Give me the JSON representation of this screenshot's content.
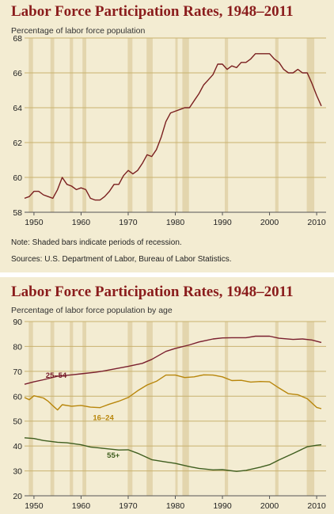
{
  "colors": {
    "background": "#f3ecd2",
    "title": "#8a1c1c",
    "recession": "#e3d5ad",
    "grid": "#c8b26f",
    "line_total": "#7a1f1f",
    "line_25_54": "#7a1f2e",
    "line_16_24": "#b8860b",
    "line_55plus": "#3f5e1f"
  },
  "chart_data": [
    {
      "type": "line",
      "title": "Labor Force Participation Rates, 1948–2011",
      "subtitle": "Percentage of labor force population",
      "xlim": [
        1948,
        2012
      ],
      "ylim": [
        58,
        68
      ],
      "x_ticks": [
        1950,
        1960,
        1970,
        1980,
        1990,
        2000,
        2010
      ],
      "y_ticks": [
        58,
        60,
        62,
        64,
        66,
        68
      ],
      "grid": true,
      "recessions": [
        [
          1948.9,
          1949.8
        ],
        [
          1953.5,
          1954.3
        ],
        [
          1957.6,
          1958.3
        ],
        [
          1960.3,
          1961.1
        ],
        [
          1969.9,
          1970.9
        ],
        [
          1973.9,
          1975.2
        ],
        [
          1980.0,
          1980.5
        ],
        [
          1981.5,
          1982.9
        ],
        [
          1990.5,
          1991.2
        ],
        [
          2001.2,
          2001.9
        ],
        [
          2007.9,
          2009.5
        ]
      ],
      "series": [
        {
          "color": "#7a1f1f",
          "points": [
            [
              1948,
              58.8
            ],
            [
              1949,
              58.9
            ],
            [
              1950,
              59.2
            ],
            [
              1951,
              59.2
            ],
            [
              1952,
              59.0
            ],
            [
              1953,
              58.9
            ],
            [
              1954,
              58.8
            ],
            [
              1955,
              59.3
            ],
            [
              1956,
              60.0
            ],
            [
              1957,
              59.6
            ],
            [
              1958,
              59.5
            ],
            [
              1959,
              59.3
            ],
            [
              1960,
              59.4
            ],
            [
              1961,
              59.3
            ],
            [
              1962,
              58.8
            ],
            [
              1963,
              58.7
            ],
            [
              1964,
              58.7
            ],
            [
              1965,
              58.9
            ],
            [
              1966,
              59.2
            ],
            [
              1967,
              59.6
            ],
            [
              1968,
              59.6
            ],
            [
              1969,
              60.1
            ],
            [
              1970,
              60.4
            ],
            [
              1971,
              60.2
            ],
            [
              1972,
              60.4
            ],
            [
              1973,
              60.8
            ],
            [
              1974,
              61.3
            ],
            [
              1975,
              61.2
            ],
            [
              1976,
              61.6
            ],
            [
              1977,
              62.3
            ],
            [
              1978,
              63.2
            ],
            [
              1979,
              63.7
            ],
            [
              1980,
              63.8
            ],
            [
              1981,
              63.9
            ],
            [
              1982,
              64.0
            ],
            [
              1983,
              64.0
            ],
            [
              1984,
              64.4
            ],
            [
              1985,
              64.8
            ],
            [
              1986,
              65.3
            ],
            [
              1987,
              65.6
            ],
            [
              1988,
              65.9
            ],
            [
              1989,
              66.5
            ],
            [
              1990,
              66.5
            ],
            [
              1991,
              66.2
            ],
            [
              1992,
              66.4
            ],
            [
              1993,
              66.3
            ],
            [
              1994,
              66.6
            ],
            [
              1995,
              66.6
            ],
            [
              1996,
              66.8
            ],
            [
              1997,
              67.1
            ],
            [
              1998,
              67.1
            ],
            [
              1999,
              67.1
            ],
            [
              2000,
              67.1
            ],
            [
              2001,
              66.8
            ],
            [
              2002,
              66.6
            ],
            [
              2003,
              66.2
            ],
            [
              2004,
              66.0
            ],
            [
              2005,
              66.0
            ],
            [
              2006,
              66.2
            ],
            [
              2007,
              66.0
            ],
            [
              2008,
              66.0
            ],
            [
              2009,
              65.4
            ],
            [
              2010,
              64.7
            ],
            [
              2011,
              64.1
            ]
          ]
        }
      ],
      "notes": [
        "Note: Shaded bars indicate periods of recession.",
        "Sources: U.S. Department of Labor, Bureau of Labor Statistics."
      ]
    },
    {
      "type": "line",
      "title": "Labor Force Participation Rates, 1948–2011",
      "subtitle": "Percentage of labor force population by age",
      "xlim": [
        1948,
        2012
      ],
      "ylim": [
        20,
        90
      ],
      "x_ticks": [
        1950,
        1960,
        1970,
        1980,
        1990,
        2000,
        2010
      ],
      "y_ticks": [
        20,
        30,
        40,
        50,
        60,
        70,
        80,
        90
      ],
      "grid": true,
      "recessions": [
        [
          1948.9,
          1949.8
        ],
        [
          1953.5,
          1954.3
        ],
        [
          1957.6,
          1958.3
        ],
        [
          1960.3,
          1961.1
        ],
        [
          1969.9,
          1970.9
        ],
        [
          1973.9,
          1975.2
        ],
        [
          1980.0,
          1980.5
        ],
        [
          1981.5,
          1982.9
        ],
        [
          1990.5,
          1991.2
        ],
        [
          2001.2,
          2001.9
        ],
        [
          2007.9,
          2009.5
        ]
      ],
      "series": [
        {
          "name": "25–54",
          "color": "#7a1f2e",
          "label_at": [
            1952.5,
            68.4
          ],
          "points": [
            [
              1948,
              64.8
            ],
            [
              1950,
              65.8
            ],
            [
              1952,
              66.6
            ],
            [
              1955,
              68.0
            ],
            [
              1958,
              68.6
            ],
            [
              1960,
              69.0
            ],
            [
              1963,
              69.6
            ],
            [
              1965,
              70.2
            ],
            [
              1968,
              71.3
            ],
            [
              1970,
              72.0
            ],
            [
              1973,
              73.2
            ],
            [
              1975,
              74.8
            ],
            [
              1978,
              78.0
            ],
            [
              1980,
              79.2
            ],
            [
              1983,
              80.6
            ],
            [
              1985,
              81.8
            ],
            [
              1988,
              83.0
            ],
            [
              1990,
              83.4
            ],
            [
              1992,
              83.5
            ],
            [
              1995,
              83.5
            ],
            [
              1997,
              84.1
            ],
            [
              2000,
              84.1
            ],
            [
              2002,
              83.3
            ],
            [
              2005,
              82.8
            ],
            [
              2007,
              83.0
            ],
            [
              2009,
              82.6
            ],
            [
              2011,
              81.6
            ]
          ]
        },
        {
          "name": "16–24",
          "color": "#b8860b",
          "label_at": [
            1962.5,
            51.3
          ],
          "points": [
            [
              1948,
              59.5
            ],
            [
              1949,
              58.6
            ],
            [
              1950,
              60.2
            ],
            [
              1952,
              59.3
            ],
            [
              1953,
              58.0
            ],
            [
              1954,
              56.2
            ],
            [
              1955,
              54.5
            ],
            [
              1956,
              56.6
            ],
            [
              1958,
              56.0
            ],
            [
              1960,
              56.3
            ],
            [
              1962,
              55.6
            ],
            [
              1964,
              55.4
            ],
            [
              1966,
              56.8
            ],
            [
              1968,
              58.0
            ],
            [
              1970,
              59.5
            ],
            [
              1972,
              62.2
            ],
            [
              1974,
              64.5
            ],
            [
              1976,
              66.0
            ],
            [
              1978,
              68.5
            ],
            [
              1980,
              68.5
            ],
            [
              1982,
              67.5
            ],
            [
              1984,
              67.8
            ],
            [
              1986,
              68.6
            ],
            [
              1988,
              68.5
            ],
            [
              1990,
              67.8
            ],
            [
              1992,
              66.3
            ],
            [
              1994,
              66.4
            ],
            [
              1996,
              65.7
            ],
            [
              1998,
              65.9
            ],
            [
              2000,
              65.8
            ],
            [
              2002,
              63.3
            ],
            [
              2004,
              61.0
            ],
            [
              2006,
              60.6
            ],
            [
              2008,
              59.0
            ],
            [
              2010,
              55.5
            ],
            [
              2011,
              55.0
            ]
          ]
        },
        {
          "name": "55+",
          "color": "#3f5e1f",
          "label_at": [
            1965.5,
            36.3
          ],
          "points": [
            [
              1948,
              43.3
            ],
            [
              1950,
              43.0
            ],
            [
              1952,
              42.2
            ],
            [
              1955,
              41.5
            ],
            [
              1957,
              41.3
            ],
            [
              1960,
              40.5
            ],
            [
              1962,
              39.6
            ],
            [
              1965,
              39.0
            ],
            [
              1968,
              38.4
            ],
            [
              1970,
              38.5
            ],
            [
              1972,
              37.1
            ],
            [
              1975,
              34.5
            ],
            [
              1978,
              33.6
            ],
            [
              1980,
              33.0
            ],
            [
              1983,
              31.7
            ],
            [
              1985,
              31.0
            ],
            [
              1988,
              30.4
            ],
            [
              1990,
              30.5
            ],
            [
              1993,
              29.8
            ],
            [
              1995,
              30.2
            ],
            [
              1998,
              31.5
            ],
            [
              2000,
              32.5
            ],
            [
              2002,
              34.4
            ],
            [
              2005,
              37.0
            ],
            [
              2008,
              39.7
            ],
            [
              2010,
              40.3
            ],
            [
              2011,
              40.5
            ]
          ]
        }
      ]
    }
  ]
}
